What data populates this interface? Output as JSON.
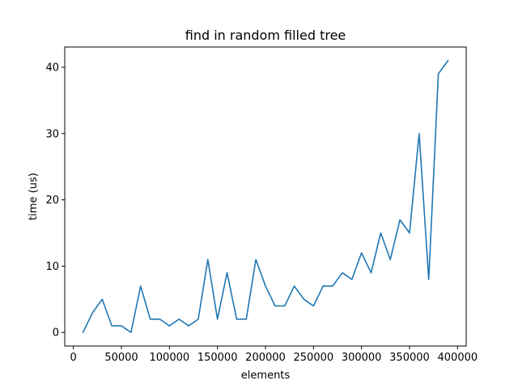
{
  "chart_data": {
    "type": "line",
    "title": "find in random filled tree",
    "xlabel": "elements",
    "ylabel": "time (us)",
    "xlim": [
      -9000,
      409000
    ],
    "ylim": [
      -2.05,
      43.05
    ],
    "grid": false,
    "xticks": [
      0,
      50000,
      100000,
      150000,
      200000,
      250000,
      300000,
      350000,
      400000
    ],
    "xtick_labels": [
      "0",
      "50000",
      "100000",
      "150000",
      "200000",
      "250000",
      "300000",
      "350000",
      "400000"
    ],
    "yticks": [
      0,
      10,
      20,
      30,
      40
    ],
    "ytick_labels": [
      "0",
      "10",
      "20",
      "30",
      "40"
    ],
    "line_color": "#1f77b4",
    "series": [
      {
        "x": [
          10000,
          20000,
          30000,
          40000,
          50000,
          60000,
          70000,
          80000,
          90000,
          100000,
          110000,
          120000,
          130000,
          140000,
          150000,
          160000,
          170000,
          180000,
          190000,
          200000,
          210000,
          220000,
          230000,
          240000,
          250000,
          260000,
          270000,
          280000,
          290000,
          300000,
          310000,
          320000,
          330000,
          340000,
          350000,
          360000,
          370000,
          380000,
          390000
        ],
        "values": [
          0,
          3,
          5,
          1,
          1,
          0,
          7,
          2,
          2,
          1,
          2,
          1,
          2,
          11,
          2,
          9,
          2,
          2,
          11,
          7,
          4,
          4,
          7,
          5,
          4,
          7,
          7,
          9,
          8,
          12,
          9,
          15,
          11,
          17,
          15,
          30,
          8,
          39,
          41
        ]
      }
    ]
  }
}
